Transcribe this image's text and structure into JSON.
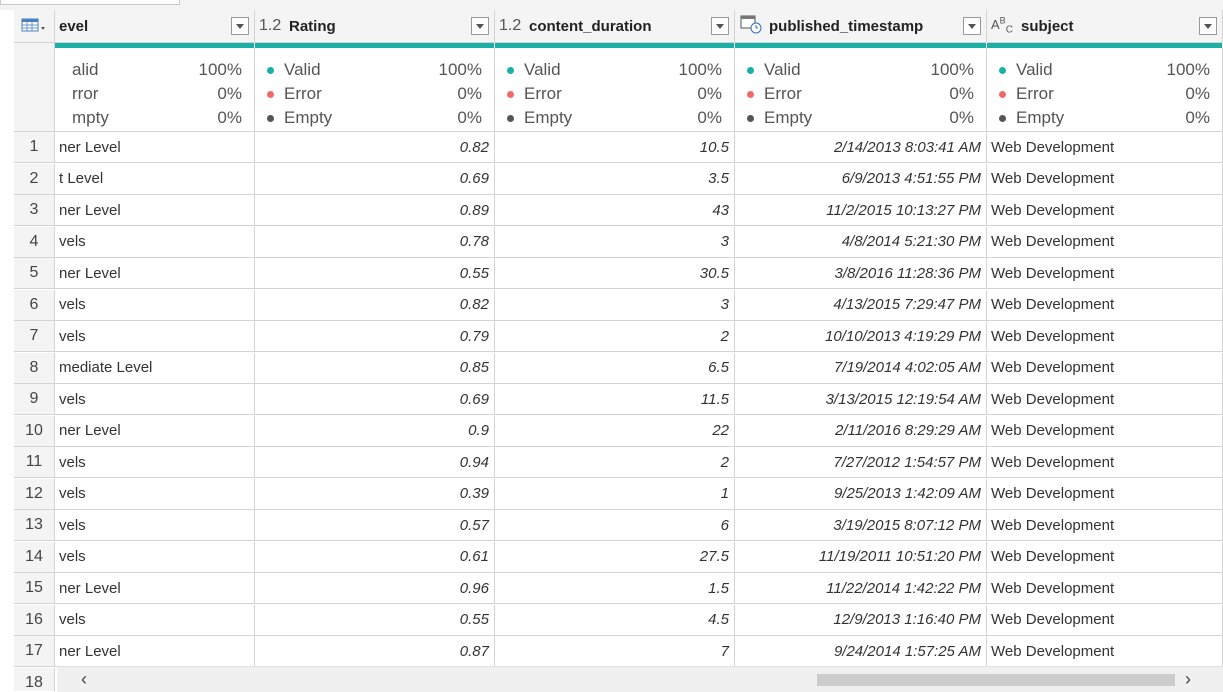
{
  "columns": [
    {
      "type_icon": "table-menu-icon",
      "type_label": "",
      "name": "evel"
    },
    {
      "type_icon": "decimal-type-icon",
      "type_label": "1.2",
      "name": "Rating"
    },
    {
      "type_icon": "decimal-type-icon",
      "type_label": "1.2",
      "name": "content_duration"
    },
    {
      "type_icon": "datetime-type-icon",
      "type_label": "",
      "name": "published_timestamp"
    },
    {
      "type_icon": "text-type-icon",
      "type_label": "ABC",
      "name": "subject"
    }
  ],
  "quality": [
    {
      "valid_label": "alid",
      "valid_pct": "100%",
      "error_label": "rror",
      "error_pct": "0%",
      "empty_label": "mpty",
      "empty_pct": "0%"
    },
    {
      "valid_label": "Valid",
      "valid_pct": "100%",
      "error_label": "Error",
      "error_pct": "0%",
      "empty_label": "Empty",
      "empty_pct": "0%"
    },
    {
      "valid_label": "Valid",
      "valid_pct": "100%",
      "error_label": "Error",
      "error_pct": "0%",
      "empty_label": "Empty",
      "empty_pct": "0%"
    },
    {
      "valid_label": "Valid",
      "valid_pct": "100%",
      "error_label": "Error",
      "error_pct": "0%",
      "empty_label": "Empty",
      "empty_pct": "0%"
    },
    {
      "valid_label": "Valid",
      "valid_pct": "100%",
      "error_label": "Error",
      "error_pct": "0%",
      "empty_label": "Empty",
      "empty_pct": "0%"
    }
  ],
  "colors": {
    "valid": "#1ab0a5",
    "error": "#f06a6a",
    "empty": "#555555",
    "accent": "#1ab0a5"
  },
  "rows": [
    {
      "n": "1",
      "level": "ner Level",
      "rating": "0.82",
      "duration": "10.5",
      "ts": "2/14/2013 8:03:41 AM",
      "subject": "Web Development"
    },
    {
      "n": "2",
      "level": "t Level",
      "rating": "0.69",
      "duration": "3.5",
      "ts": "6/9/2013 4:51:55 PM",
      "subject": "Web Development"
    },
    {
      "n": "3",
      "level": "ner Level",
      "rating": "0.89",
      "duration": "43",
      "ts": "11/2/2015 10:13:27 PM",
      "subject": "Web Development"
    },
    {
      "n": "4",
      "level": "vels",
      "rating": "0.78",
      "duration": "3",
      "ts": "4/8/2014 5:21:30 PM",
      "subject": "Web Development"
    },
    {
      "n": "5",
      "level": "ner Level",
      "rating": "0.55",
      "duration": "30.5",
      "ts": "3/8/2016 11:28:36 PM",
      "subject": "Web Development"
    },
    {
      "n": "6",
      "level": "vels",
      "rating": "0.82",
      "duration": "3",
      "ts": "4/13/2015 7:29:47 PM",
      "subject": "Web Development"
    },
    {
      "n": "7",
      "level": "vels",
      "rating": "0.79",
      "duration": "2",
      "ts": "10/10/2013 4:19:29 PM",
      "subject": "Web Development"
    },
    {
      "n": "8",
      "level": "mediate Level",
      "rating": "0.85",
      "duration": "6.5",
      "ts": "7/19/2014 4:02:05 AM",
      "subject": "Web Development"
    },
    {
      "n": "9",
      "level": "vels",
      "rating": "0.69",
      "duration": "11.5",
      "ts": "3/13/2015 12:19:54 AM",
      "subject": "Web Development"
    },
    {
      "n": "10",
      "level": "ner Level",
      "rating": "0.9",
      "duration": "22",
      "ts": "2/11/2016 8:29:29 AM",
      "subject": "Web Development"
    },
    {
      "n": "11",
      "level": "vels",
      "rating": "0.94",
      "duration": "2",
      "ts": "7/27/2012 1:54:57 PM",
      "subject": "Web Development"
    },
    {
      "n": "12",
      "level": "vels",
      "rating": "0.39",
      "duration": "1",
      "ts": "9/25/2013 1:42:09 AM",
      "subject": "Web Development"
    },
    {
      "n": "13",
      "level": "vels",
      "rating": "0.57",
      "duration": "6",
      "ts": "3/19/2015 8:07:12 PM",
      "subject": "Web Development"
    },
    {
      "n": "14",
      "level": "vels",
      "rating": "0.61",
      "duration": "27.5",
      "ts": "11/19/2011 10:51:20 PM",
      "subject": "Web Development"
    },
    {
      "n": "15",
      "level": "ner Level",
      "rating": "0.96",
      "duration": "1.5",
      "ts": "11/22/2014 1:42:22 PM",
      "subject": "Web Development"
    },
    {
      "n": "16",
      "level": "vels",
      "rating": "0.55",
      "duration": "4.5",
      "ts": "12/9/2013 1:16:40 PM",
      "subject": "Web Development"
    },
    {
      "n": "17",
      "level": "ner Level",
      "rating": "0.87",
      "duration": "7",
      "ts": "9/24/2014 1:57:25 AM",
      "subject": "Web Development"
    },
    {
      "n": "18",
      "level": "",
      "rating": "",
      "duration": "",
      "ts": "",
      "subject": ""
    }
  ],
  "scrollbar": {
    "left_arrow": "‹",
    "right_arrow": "›"
  }
}
